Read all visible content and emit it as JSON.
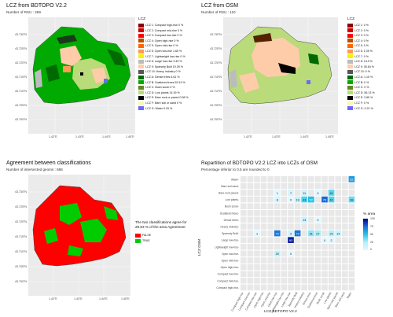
{
  "panel1": {
    "title": "LCZ from   BDTOPO V2.2",
    "subtitle": "Number of RSU : 269",
    "legend_title": "LCZ",
    "legend": [
      {
        "label": "LCZ 1: Compact high-rise 0 %",
        "color": "#8b0000"
      },
      {
        "label": "LCZ 2: Compact mid-rise 0 %",
        "color": "#cc0000"
      },
      {
        "label": "LCZ 3: Compact low-rise 0 %",
        "color": "#ff0000"
      },
      {
        "label": "LCZ 4: Open high-rise 0 %",
        "color": "#bf4d00"
      },
      {
        "label": "LCZ 5: Open mid-rise 0 %",
        "color": "#ff6600"
      },
      {
        "label": "LCZ 6: Open low-rise 1.65 %",
        "color": "#ff9955"
      },
      {
        "label": "LCZ 7: Lightweight low-rise 0 %",
        "color": "#faee05"
      },
      {
        "label": "LCZ 8: Large low-rise 3.49 %",
        "color": "#bcbcbc"
      },
      {
        "label": "LCZ 9: Sparsely Built 19.39 %",
        "color": "#ffccaa"
      },
      {
        "label": "LCZ 10: Heavy industry 0 %",
        "color": "#555555"
      },
      {
        "label": "LCZ A: Dense trees 6.61 %",
        "color": "#006a00"
      },
      {
        "label": "LCZ B: Scattered trees 53.19 %",
        "color": "#00aa00"
      },
      {
        "label": "LCZ C: Bush scrub 0 %",
        "color": "#648525"
      },
      {
        "label": "LCZ D: Low plants 14.39 %",
        "color": "#b9db79"
      },
      {
        "label": "LCZ E: Bare rock or paved 0.58 %",
        "color": "#000000"
      },
      {
        "label": "LCZ F: Bare soil or sand 0 %",
        "color": "#fbf7ae"
      },
      {
        "label": "LCZ G: Water 0.29 %",
        "color": "#6a6aff"
      }
    ],
    "yticks": [
      "43.730°N",
      "43.725°N",
      "43.720°N",
      "43.715°N",
      "43.710°N",
      "43.705°N",
      "43.700°N",
      "43.695°N"
    ],
    "xticks": [
      "1.42°E",
      "1.43°E",
      "1.44°E",
      "1.45°E"
    ]
  },
  "panel2": {
    "title": "LCZ from   OSM",
    "subtitle": "Number of RSU : 110",
    "legend_title": "LCZ",
    "legend": [
      {
        "label": "LCZ 1: 0 %",
        "color": "#8b0000"
      },
      {
        "label": "LCZ 2: 0 %",
        "color": "#cc0000"
      },
      {
        "label": "LCZ 3: 0 %",
        "color": "#ff0000"
      },
      {
        "label": "LCZ 4: 0 %",
        "color": "#bf4d00"
      },
      {
        "label": "LCZ 5: 0 %",
        "color": "#ff6600"
      },
      {
        "label": "LCZ 6: 1.05 %",
        "color": "#ff9955"
      },
      {
        "label": "LCZ 7: 0 %",
        "color": "#faee05"
      },
      {
        "label": "LCZ 8: 3.19 %",
        "color": "#bcbcbc"
      },
      {
        "label": "LCZ 9: 35.64 %",
        "color": "#ffccaa"
      },
      {
        "label": "LCZ 10: 0 %",
        "color": "#555555"
      },
      {
        "label": "LCZ A: 1.15 %",
        "color": "#006a00"
      },
      {
        "label": "LCZ B: 0 %",
        "color": "#00aa00"
      },
      {
        "label": "LCZ C: 0 %",
        "color": "#648525"
      },
      {
        "label": "LCZ D: 56.13 %",
        "color": "#b9db79"
      },
      {
        "label": "LCZ E: 2.65 %",
        "color": "#000000"
      },
      {
        "label": "LCZ F: 0 %",
        "color": "#fbf7ae"
      },
      {
        "label": "LCZ G: 0.21 %",
        "color": "#6a6aff"
      }
    ],
    "yticks": [
      "43.730°N",
      "43.725°N",
      "43.720°N",
      "43.715°N",
      "43.710°N",
      "43.705°N",
      "43.700°N",
      "43.695°N"
    ],
    "xticks": [
      "1.42°E",
      "1.43°E",
      "1.44°E",
      "1.45°E"
    ]
  },
  "panel3": {
    "title": "Agreement between classifications",
    "subtitle": "Number of intersected geoms : 686",
    "note": "The two classifications agree for 29.63 % of the area Agreement",
    "legend": [
      {
        "label": "FALSE",
        "color": "#ff0000"
      },
      {
        "label": "TRUE",
        "color": "#00cc00"
      }
    ],
    "yticks": [
      "43.730°N",
      "43.725°N",
      "43.720°N",
      "43.715°N",
      "43.710°N",
      "43.705°N",
      "43.700°N",
      "43.695°N"
    ],
    "xticks": [
      "1.42°E",
      "1.43°E",
      "1.44°E",
      "1.45°E"
    ]
  },
  "panel4": {
    "title": "Repartition of   BDTOPO V2.2   LCZ into LCZs of   OSM",
    "subtitle": "Percentage inferior to 0.5 are rounded to 0",
    "ylabel": "LCZ   OSM",
    "xlabel": "LCZ   BDTOPO V2.2",
    "legend_title": "% area",
    "legend_ticks": [
      "100",
      "75",
      "50",
      "25",
      "0"
    ],
    "colors": {
      "low": "#d8f3ff",
      "high": "#00008b",
      "zero": "#e8e8e8"
    }
  },
  "chart_data": {
    "type": "heatmap",
    "title": "Repartition of   BDTOPO V2.2   LCZ into LCZs of   OSM",
    "x": [
      "Compact high-rise",
      "Compact mid-rise",
      "Compact low-rise",
      "Open high-rise",
      "Open mid-rise",
      "Open low-rise",
      "Lightweight low-rise",
      "Large low-rise",
      "Sparsely Built",
      "Heavy industry",
      "Dense trees",
      "Scattered trees",
      "Bush scrub",
      "Low plants",
      "Bare rock paved",
      "Bare soil sand",
      "Water"
    ],
    "y": [
      "Water",
      "Bare soil sand",
      "Bare rock paved",
      "Low plants",
      "Bush scrub",
      "Scattered trees",
      "Dense trees",
      "Heavy industry",
      "Sparsely Built",
      "Large low-rise",
      "Lightweight low-rise",
      "Open low-rise",
      "Open mid-rise",
      "Open high-rise",
      "Compact low-rise",
      "Compact mid-rise",
      "Compact high-rise"
    ],
    "cells": [
      {
        "x": 16,
        "y": 0,
        "v": 62
      },
      {
        "x": 5,
        "y": 2,
        "v": 1
      },
      {
        "x": 7,
        "y": 2,
        "v": 7
      },
      {
        "x": 9,
        "y": 2,
        "v": 11
      },
      {
        "x": 11,
        "y": 2,
        "v": 0
      },
      {
        "x": 13,
        "y": 2,
        "v": 41
      },
      {
        "x": 5,
        "y": 3,
        "v": 8
      },
      {
        "x": 7,
        "y": 3,
        "v": 0
      },
      {
        "x": 8,
        "y": 3,
        "v": 19
      },
      {
        "x": 9,
        "y": 3,
        "v": 43
      },
      {
        "x": 10,
        "y": 3,
        "v": 52
      },
      {
        "x": 12,
        "y": 3,
        "v": 76
      },
      {
        "x": 13,
        "y": 3,
        "v": 42
      },
      {
        "x": 16,
        "y": 3,
        "v": 38
      },
      {
        "x": 9,
        "y": 6,
        "v": 14
      },
      {
        "x": 11,
        "y": 6,
        "v": 0
      },
      {
        "x": 2,
        "y": 8,
        "v": 1
      },
      {
        "x": 5,
        "y": 8,
        "v": 72
      },
      {
        "x": 7,
        "y": 8,
        "v": 9
      },
      {
        "x": 8,
        "y": 8,
        "v": 73
      },
      {
        "x": 10,
        "y": 8,
        "v": 31
      },
      {
        "x": 11,
        "y": 8,
        "v": 27
      },
      {
        "x": 13,
        "y": 8,
        "v": 24
      },
      {
        "x": 14,
        "y": 8,
        "v": 14
      },
      {
        "x": 7,
        "y": 9,
        "v": 93
      },
      {
        "x": 12,
        "y": 9,
        "v": 0
      },
      {
        "x": 13,
        "y": 9,
        "v": 2
      },
      {
        "x": 5,
        "y": 11,
        "v": 20
      },
      {
        "x": 7,
        "y": 11,
        "v": 0
      }
    ],
    "legend_range": [
      0,
      100
    ]
  }
}
